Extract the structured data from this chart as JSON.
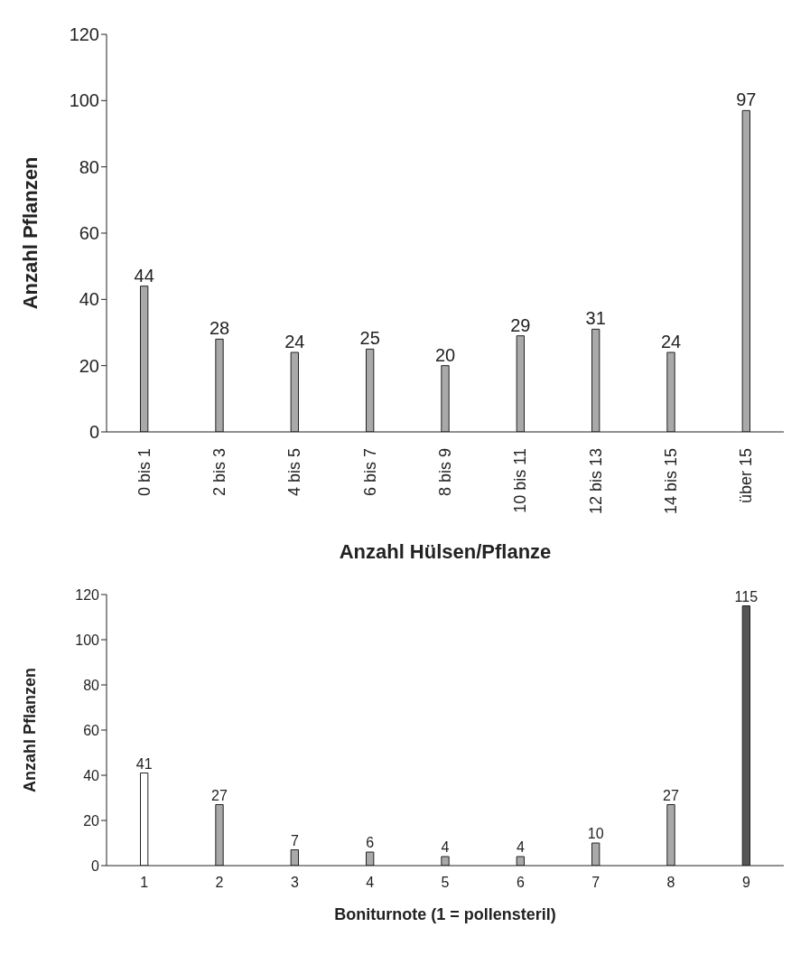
{
  "chart_data": [
    {
      "type": "bar",
      "categories": [
        "0 bis 1",
        "2 bis 3",
        "4 bis 5",
        "6 bis 7",
        "8 bis 9",
        "10 bis 11",
        "12 bis 13",
        "14 bis 15",
        "über 15"
      ],
      "values": [
        44,
        28,
        24,
        25,
        20,
        29,
        31,
        24,
        97
      ],
      "colors": [
        "#a9a9a9",
        "#a9a9a9",
        "#a9a9a9",
        "#a9a9a9",
        "#a9a9a9",
        "#a9a9a9",
        "#a9a9a9",
        "#a9a9a9",
        "#a9a9a9"
      ],
      "ylim": [
        0,
        120
      ],
      "yticks": [
        0,
        20,
        40,
        60,
        80,
        100,
        120
      ],
      "xlabel": "Anzahl Hülsen/Pflanze",
      "ylabel": "Anzahl Pflanzen",
      "data_labels": true
    },
    {
      "type": "bar",
      "categories": [
        "1",
        "2",
        "3",
        "4",
        "5",
        "6",
        "7",
        "8",
        "9"
      ],
      "values": [
        41,
        27,
        7,
        6,
        4,
        4,
        10,
        27,
        115
      ],
      "colors": [
        "#ffffff",
        "#a9a9a9",
        "#a9a9a9",
        "#a9a9a9",
        "#a9a9a9",
        "#a9a9a9",
        "#a9a9a9",
        "#a9a9a9",
        "#555555"
      ],
      "ylim": [
        0,
        120
      ],
      "yticks": [
        0,
        20,
        40,
        60,
        80,
        100,
        120
      ],
      "xlabel": "Boniturnote (1 = pollensteril)",
      "ylabel": "Anzahl Pflanzen",
      "data_labels": true
    }
  ]
}
